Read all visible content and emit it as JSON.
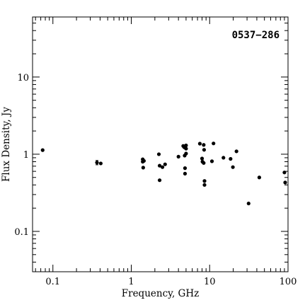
{
  "chart_data": {
    "type": "scatter",
    "title": "0537−286",
    "xlabel": "Frequency, GHz",
    "ylabel": "Flux Density, Jy",
    "x_scale": "log",
    "y_scale": "log",
    "xlim": [
      0.055,
      100
    ],
    "ylim": [
      0.03,
      60
    ],
    "x_ticks": [
      {
        "value": 0.1,
        "label": "0.1"
      },
      {
        "value": 1,
        "label": "1"
      },
      {
        "value": 10,
        "label": "10"
      },
      {
        "value": 100,
        "label": "100"
      }
    ],
    "y_ticks": [
      {
        "value": 0.1,
        "label": "0.1"
      },
      {
        "value": 1,
        "label": "1"
      },
      {
        "value": 10,
        "label": "10"
      }
    ],
    "grid": false,
    "series": [
      {
        "points": [
          {
            "x": 0.074,
            "y": 1.13
          },
          {
            "x": 0.365,
            "y": 0.78,
            "yerr": 0.05
          },
          {
            "x": 0.408,
            "y": 0.76
          },
          {
            "x": 1.4,
            "y": 0.86
          },
          {
            "x": 1.4,
            "y": 0.8
          },
          {
            "x": 1.42,
            "y": 0.67
          },
          {
            "x": 1.45,
            "y": 0.82
          },
          {
            "x": 2.25,
            "y": 1.0
          },
          {
            "x": 2.3,
            "y": 0.71
          },
          {
            "x": 2.3,
            "y": 0.46
          },
          {
            "x": 2.5,
            "y": 0.68
          },
          {
            "x": 2.7,
            "y": 0.74
          },
          {
            "x": 4.0,
            "y": 0.93
          },
          {
            "x": 4.6,
            "y": 1.28
          },
          {
            "x": 4.75,
            "y": 1.23
          },
          {
            "x": 4.8,
            "y": 0.96
          },
          {
            "x": 4.85,
            "y": 0.66
          },
          {
            "x": 4.85,
            "y": 0.56
          },
          {
            "x": 5.0,
            "y": 1.3
          },
          {
            "x": 5.0,
            "y": 1.18
          },
          {
            "x": 5.0,
            "y": 1.02
          },
          {
            "x": 7.5,
            "y": 1.37
          },
          {
            "x": 8.0,
            "y": 0.88
          },
          {
            "x": 8.1,
            "y": 0.8
          },
          {
            "x": 8.4,
            "y": 0.77
          },
          {
            "x": 8.4,
            "y": 1.32
          },
          {
            "x": 8.5,
            "y": 1.14
          },
          {
            "x": 8.6,
            "y": 0.45
          },
          {
            "x": 8.6,
            "y": 0.4
          },
          {
            "x": 10.7,
            "y": 0.81
          },
          {
            "x": 11.2,
            "y": 1.38
          },
          {
            "x": 15.0,
            "y": 0.9
          },
          {
            "x": 18.5,
            "y": 0.87
          },
          {
            "x": 19.8,
            "y": 0.68
          },
          {
            "x": 22.0,
            "y": 1.09
          },
          {
            "x": 31.4,
            "y": 0.23
          },
          {
            "x": 43.0,
            "y": 0.5
          },
          {
            "x": 90.0,
            "y": 0.58
          },
          {
            "x": 92.0,
            "y": 0.43
          }
        ]
      }
    ]
  }
}
